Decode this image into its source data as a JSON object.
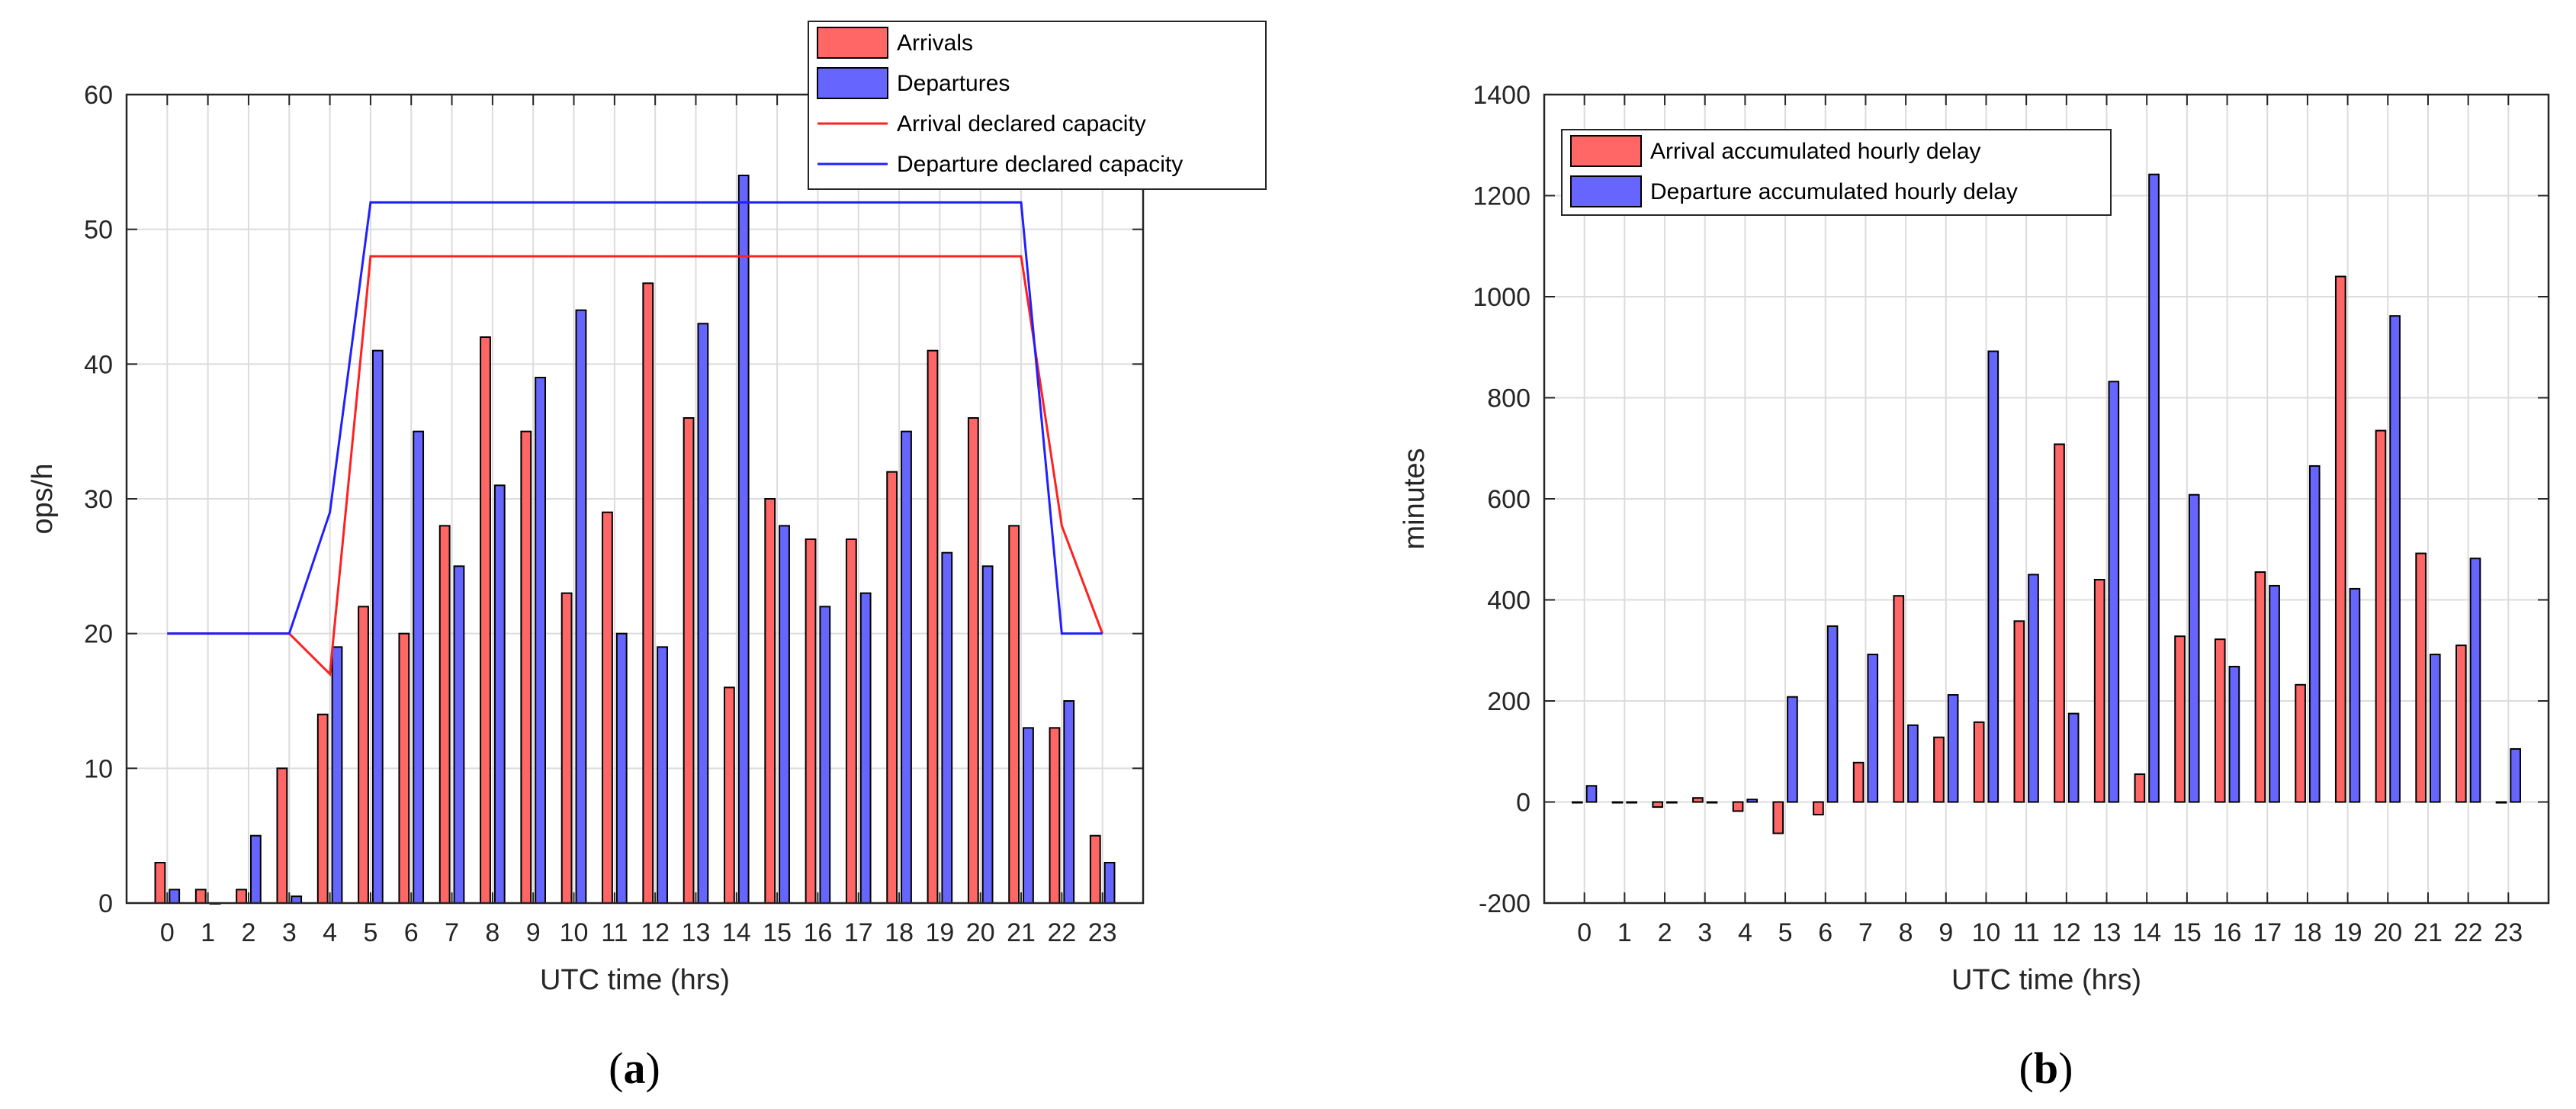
{
  "chart_data": [
    {
      "type": "bar",
      "id": "a",
      "caption_letter": "a",
      "xlabel": "UTC time (hrs)",
      "ylabel": "ops/h",
      "ylim": [
        0,
        60
      ],
      "yticks": [
        0,
        10,
        20,
        30,
        40,
        50,
        60
      ],
      "categories": [
        "0",
        "1",
        "2",
        "3",
        "4",
        "5",
        "6",
        "7",
        "8",
        "9",
        "10",
        "11",
        "12",
        "13",
        "14",
        "15",
        "16",
        "17",
        "18",
        "19",
        "20",
        "21",
        "22",
        "23"
      ],
      "grid": true,
      "legend_position": "top-right",
      "series": [
        {
          "name": "Arrivals",
          "kind": "bar",
          "color": "#ff6666",
          "values": [
            3,
            1,
            1,
            10,
            14,
            22,
            20,
            28,
            42,
            35,
            23,
            29,
            46,
            36,
            16,
            30,
            27,
            27,
            32,
            41,
            36,
            28,
            13,
            5
          ]
        },
        {
          "name": "Departures",
          "kind": "bar",
          "color": "#6666ff",
          "values": [
            1,
            0,
            5,
            0.5,
            19,
            41,
            35,
            25,
            31,
            39,
            44,
            20,
            19,
            43,
            54,
            28,
            22,
            23,
            35,
            26,
            25,
            13,
            15,
            3
          ]
        },
        {
          "name": "Arrival declared capacity",
          "kind": "line",
          "color": "#ff2020",
          "values": [
            20,
            20,
            20,
            20,
            17,
            48,
            48,
            48,
            48,
            48,
            48,
            48,
            48,
            48,
            48,
            48,
            48,
            48,
            48,
            48,
            48,
            48,
            28,
            20
          ]
        },
        {
          "name": "Departure declared capacity",
          "kind": "line",
          "color": "#2020ff",
          "values": [
            20,
            20,
            20,
            20,
            29,
            52,
            52,
            52,
            52,
            52,
            52,
            52,
            52,
            52,
            52,
            52,
            52,
            52,
            52,
            52,
            52,
            52,
            20,
            20
          ]
        }
      ]
    },
    {
      "type": "bar",
      "id": "b",
      "caption_letter": "b",
      "xlabel": "UTC time (hrs)",
      "ylabel": "minutes",
      "ylim": [
        -200,
        1400
      ],
      "yticks": [
        -200,
        0,
        200,
        400,
        600,
        800,
        1000,
        1200,
        1400
      ],
      "categories": [
        "0",
        "1",
        "2",
        "3",
        "4",
        "5",
        "6",
        "7",
        "8",
        "9",
        "10",
        "11",
        "12",
        "13",
        "14",
        "15",
        "16",
        "17",
        "18",
        "19",
        "20",
        "21",
        "22",
        "23"
      ],
      "grid": true,
      "legend_position": "top-left",
      "series": [
        {
          "name": "Arrival accumulated hourly delay",
          "kind": "bar",
          "color": "#ff6666",
          "values": [
            0,
            0,
            -10,
            8,
            -18,
            -62,
            -25,
            78,
            408,
            128,
            158,
            358,
            708,
            440,
            55,
            328,
            322,
            455,
            232,
            1040,
            735,
            492,
            310,
            0
          ]
        },
        {
          "name": "Departure accumulated hourly delay",
          "kind": "bar",
          "color": "#6666ff",
          "values": [
            32,
            0,
            0,
            0,
            5,
            208,
            348,
            292,
            152,
            212,
            892,
            450,
            175,
            832,
            1242,
            608,
            268,
            428,
            665,
            422,
            962,
            292,
            482,
            105
          ]
        }
      ]
    }
  ]
}
